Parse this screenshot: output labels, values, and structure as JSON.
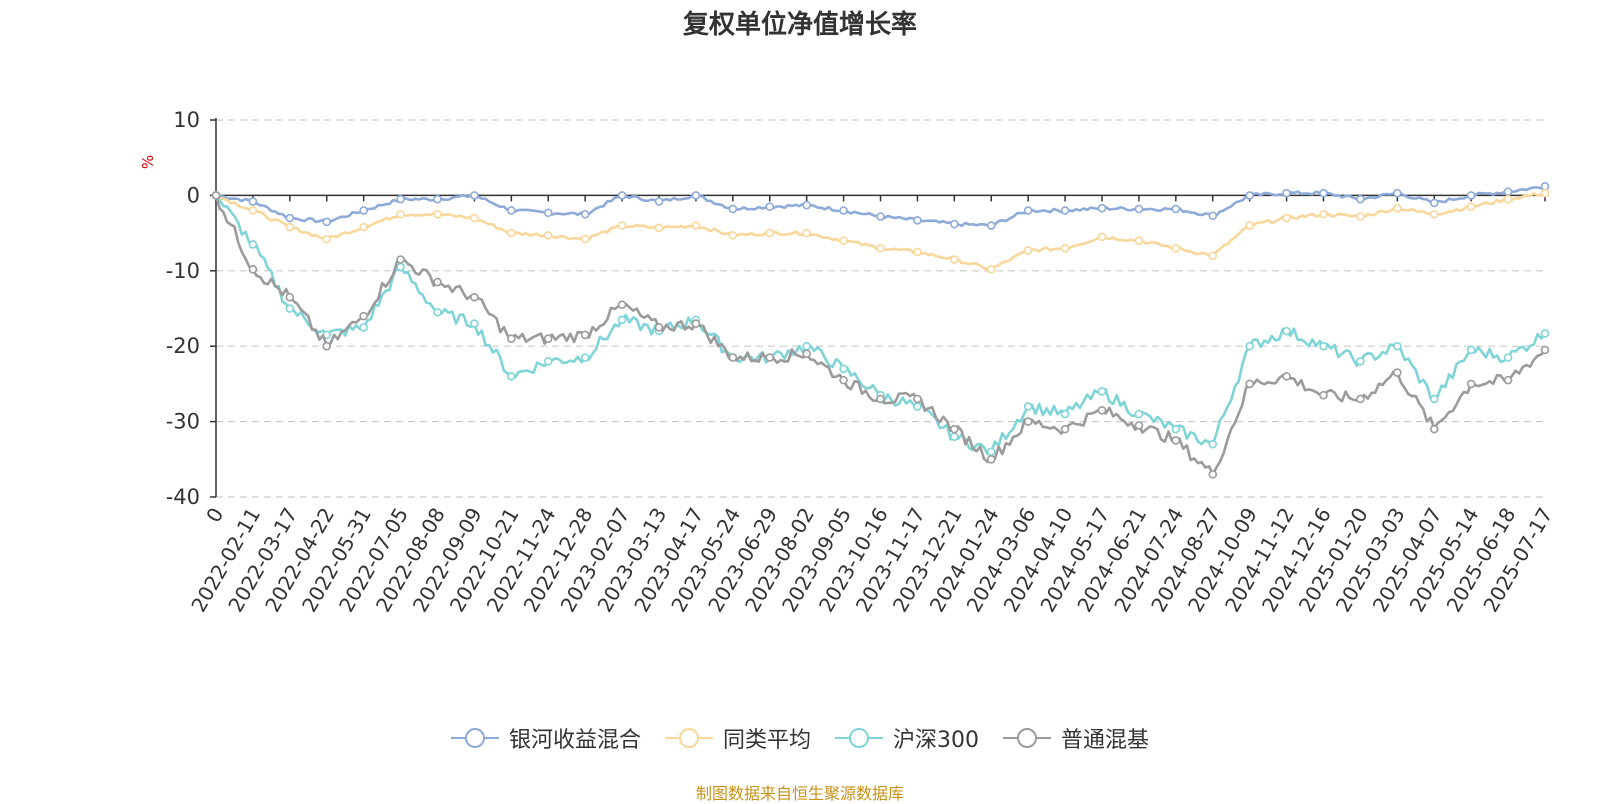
{
  "chart_data": {
    "type": "line",
    "title": "复权单位净值增长率",
    "ylabel": "%",
    "ylim": [
      -40,
      10
    ],
    "yticks": [
      10,
      0,
      -10,
      -20,
      -30,
      -40
    ],
    "x_tick_labels": [
      "0",
      "2022-02-11",
      "2022-03-17",
      "2022-04-22",
      "2022-05-31",
      "2022-07-05",
      "2022-08-08",
      "2022-09-09",
      "2022-10-21",
      "2022-11-24",
      "2022-12-28",
      "2023-02-07",
      "2023-03-13",
      "2023-04-17",
      "2023-05-24",
      "2023-06-29",
      "2023-08-02",
      "2023-09-05",
      "2023-10-16",
      "2023-11-17",
      "2023-12-21",
      "2024-01-24",
      "2024-03-06",
      "2024-04-10",
      "2024-05-17",
      "2024-06-21",
      "2024-07-24",
      "2024-08-27",
      "2024-10-09",
      "2024-11-12",
      "2024-12-16",
      "2025-01-20",
      "2025-03-03",
      "2025-04-07",
      "2025-05-14",
      "2025-06-18",
      "2025-07-17"
    ],
    "grid": "horizontal-dashed",
    "legend_position": "bottom",
    "series": [
      {
        "name": "银河收益混合",
        "color": "#8eaad8",
        "values": [
          0,
          -0.8,
          -3,
          -3.5,
          -2,
          -0.5,
          -0.5,
          0,
          -2,
          -2.3,
          -2.5,
          0,
          -0.8,
          0,
          -1.8,
          -1.5,
          -1.3,
          -2,
          -2.8,
          -3.3,
          -3.8,
          -4,
          -2,
          -2,
          -1.7,
          -1.8,
          -1.8,
          -2.7,
          0,
          0.3,
          0.3,
          -0.5,
          0.3,
          -1,
          0,
          0.5,
          1.2
        ]
      },
      {
        "name": "同类平均",
        "color": "#f9d79a",
        "values": [
          0,
          -2,
          -4.2,
          -5.8,
          -4.2,
          -2.5,
          -2.5,
          -3,
          -5,
          -5.3,
          -5.8,
          -4,
          -4.3,
          -4,
          -5.3,
          -5,
          -5,
          -6,
          -7,
          -7.5,
          -8.5,
          -9.8,
          -7.3,
          -7,
          -5.5,
          -6,
          -7,
          -8,
          -4,
          -3,
          -2.5,
          -2.8,
          -1.7,
          -2.5,
          -1.5,
          -0.5,
          0.3
        ]
      },
      {
        "name": "沪深300",
        "color": "#7fd4d8",
        "values": [
          0,
          -6.5,
          -15,
          -18.5,
          -17.5,
          -9.5,
          -15.5,
          -17,
          -24,
          -22,
          -21.5,
          -16.5,
          -18,
          -16.5,
          -21.5,
          -21.5,
          -20,
          -23,
          -26.5,
          -28,
          -32,
          -34,
          -28,
          -29,
          -26,
          -29,
          -31,
          -33,
          -20,
          -18,
          -20,
          -22,
          -20,
          -27,
          -20.5,
          -21.5,
          -18.3
        ]
      },
      {
        "name": "普通混基",
        "color": "#9b9b9b",
        "values": [
          0,
          -9.8,
          -13.5,
          -20,
          -16,
          -8.5,
          -11.5,
          -13.5,
          -19,
          -19,
          -18.5,
          -14.5,
          -17.5,
          -17,
          -21.5,
          -21.5,
          -21,
          -24.5,
          -27,
          -27,
          -31,
          -35,
          -30,
          -31,
          -28.5,
          -30.5,
          -32.5,
          -37,
          -25,
          -24,
          -26.5,
          -27,
          -23.5,
          -31,
          -25,
          -24.5,
          -20.5
        ]
      }
    ]
  },
  "legend": {
    "items": [
      "银河收益混合",
      "同类平均",
      "沪深300",
      "普通混基"
    ]
  },
  "source_note": "制图数据来自恒生聚源数据库"
}
